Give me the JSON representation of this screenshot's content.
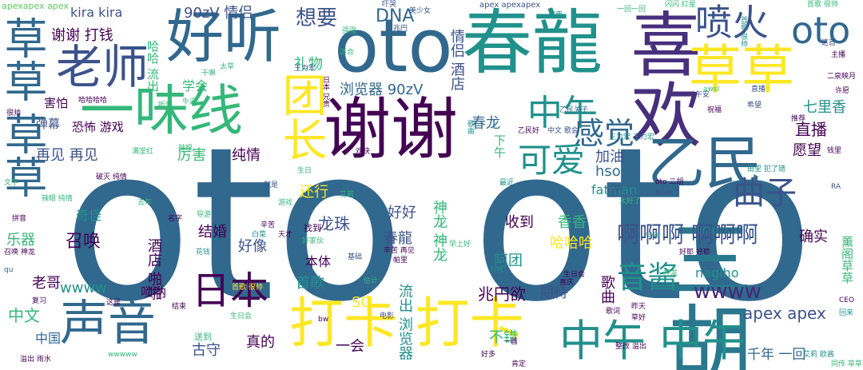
{
  "colors": {
    "background": "#ffffff",
    "purple": "#440154",
    "indigo": "#3b528b",
    "blue": "#31688e",
    "teal": "#21918c",
    "green": "#35b779",
    "lime": "#5ec962",
    "yellow": "#fde725",
    "yellowgreen": "#b5de2b"
  },
  "words": [
    {
      "text": "oto oto",
      "color": "#31688e"
    },
    {
      "text": "春龍",
      "color": "#21918c"
    },
    {
      "text": "oto",
      "color": "#31688e"
    },
    {
      "text": "谢谢",
      "color": "#440154"
    },
    {
      "text": "喜欢",
      "color": "#472f7d"
    },
    {
      "text": "草草",
      "color": "#fde725"
    },
    {
      "text": "三胡",
      "color": "#2a788e"
    },
    {
      "text": "乙民",
      "color": "#31688e"
    },
    {
      "text": "一味线",
      "color": "#35b779"
    },
    {
      "text": "好听",
      "color": "#31688e"
    },
    {
      "text": "老师",
      "color": "#3b528b"
    },
    {
      "text": "声音",
      "color": "#31688e"
    },
    {
      "text": "打卡 打卡",
      "color": "#fde725"
    },
    {
      "text": "中午 中午",
      "color": "#21918c"
    },
    {
      "text": "草草",
      "color": "#31688e"
    },
    {
      "text": "草草",
      "color": "#31688e"
    },
    {
      "text": "团长",
      "color": "#fde725"
    },
    {
      "text": "喷火",
      "color": "#3b528b"
    },
    {
      "text": "oto",
      "color": "#31688e"
    },
    {
      "text": "日本",
      "color": "#440154"
    },
    {
      "text": "中午",
      "color": "#21918c"
    },
    {
      "text": "感觉",
      "color": "#31688e"
    },
    {
      "text": "可爱",
      "color": "#21918c"
    },
    {
      "text": "曲子",
      "color": "#3b528b"
    },
    {
      "text": "音酱",
      "color": "#21918c"
    },
    {
      "text": "啊啊啊 啊啊啊",
      "color": "#3b528b"
    },
    {
      "text": "wwww",
      "color": "#482878"
    },
    {
      "text": "apex apex",
      "color": "#3b528b"
    },
    {
      "text": "千年 一回",
      "color": "#31688e"
    },
    {
      "text": "想要",
      "color": "#3b528b"
    },
    {
      "text": "DNA",
      "color": "#31688e"
    },
    {
      "text": "90zV 情侣",
      "color": "#3b528b"
    },
    {
      "text": "kira kira",
      "color": "#3b528b"
    },
    {
      "text": "谢谢 打钱",
      "color": "#440154"
    },
    {
      "text": "礼物",
      "color": "#35b779"
    },
    {
      "text": "浏览器 90zV",
      "color": "#31688e"
    },
    {
      "text": "情侣 酒店",
      "color": "#3b528b"
    },
    {
      "text": "春龙",
      "color": "#31688e"
    },
    {
      "text": "再见 再见",
      "color": "#3b528b"
    },
    {
      "text": "害怕",
      "color": "#440154"
    },
    {
      "text": "弹幕",
      "color": "#3b528b"
    },
    {
      "text": "恐怖 游戏",
      "color": "#440154"
    },
    {
      "text": "厉害",
      "color": "#35b779"
    },
    {
      "text": "纯情",
      "color": "#440154"
    },
    {
      "text": "加油",
      "color": "#3b528b"
    },
    {
      "text": "hso",
      "color": "#31688e"
    },
    {
      "text": "fatman",
      "color": "#21918c"
    },
    {
      "text": "直播",
      "color": "#440154"
    },
    {
      "text": "愿望",
      "color": "#440154"
    },
    {
      "text": "七里香",
      "color": "#21918c"
    },
    {
      "text": "好好",
      "color": "#3b528b"
    },
    {
      "text": "龙珠",
      "color": "#3b528b"
    },
    {
      "text": "还行",
      "color": "#fde725"
    },
    {
      "text": "召唤",
      "color": "#440154"
    },
    {
      "text": "奇怪",
      "color": "#21918c"
    },
    {
      "text": "结婚",
      "color": "#440154"
    },
    {
      "text": "好像",
      "color": "#3b528b"
    },
    {
      "text": "春龍",
      "color": "#3b528b"
    },
    {
      "text": "收到",
      "color": "#440154"
    },
    {
      "text": "香香",
      "color": "#35b779"
    },
    {
      "text": "哈哈哈",
      "color": "#fde725"
    },
    {
      "text": "阿团",
      "color": "#21918c"
    },
    {
      "text": "nagiho",
      "color": "#21918c"
    },
    {
      "text": "确实",
      "color": "#440154"
    },
    {
      "text": "乐器",
      "color": "#35b779"
    },
    {
      "text": "老哥",
      "color": "#440154"
    },
    {
      "text": "wwww",
      "color": "#21918c"
    },
    {
      "text": "首歌",
      "color": "#21918c"
    },
    {
      "text": "本体",
      "color": "#440154"
    },
    {
      "text": "兆円欲",
      "color": "#440154"
    },
    {
      "text": "期待",
      "color": "#3b528b"
    },
    {
      "text": "歌曲",
      "color": "#440154"
    },
    {
      "text": "SC",
      "color": "#fde725"
    },
    {
      "text": "中文",
      "color": "#35b779"
    },
    {
      "text": "中国",
      "color": "#31688e"
    },
    {
      "text": "古守",
      "color": "#3b528b"
    },
    {
      "text": "真的",
      "color": "#440154"
    },
    {
      "text": "一会",
      "color": "#440154"
    },
    {
      "text": "不错",
      "color": "#35b779"
    },
    {
      "text": "流出 浏览器",
      "color": "#21918c"
    },
    {
      "text": "神龙 神龙",
      "color": "#35b779"
    },
    {
      "text": "酒店 啪啪",
      "color": "#440154"
    },
    {
      "text": "唢呐",
      "color": "#440154"
    },
    {
      "text": "学会",
      "color": "#35b779"
    },
    {
      "text": "哈哈 流出",
      "color": "#35b779"
    },
    {
      "text": "下午",
      "color": "#35b779"
    },
    {
      "text": "薰阁草草",
      "color": "#35b779"
    },
    {
      "text": "apexapex apex",
      "color": "#5ec962"
    },
    {
      "text": "apex apexapex",
      "color": "#3b528b"
    },
    {
      "text": "王力宏",
      "color": "#3b528b"
    },
    {
      "text": "王力宏 王力宏",
      "color": "#21918c"
    },
    {
      "text": "美少女",
      "color": "#3b528b"
    },
    {
      "text": "哈哈哈哈",
      "color": "#440154"
    },
    {
      "text": "满堂红",
      "color": "#35b779"
    },
    {
      "text": "破灭 纯情",
      "color": "#440154"
    },
    {
      "text": "oto 二胡",
      "color": "#440154"
    },
    {
      "text": "乙民关子",
      "color": "#31688e"
    },
    {
      "text": "中文 歌会",
      "color": "#3b528b"
    },
    {
      "text": "田里 犯了错",
      "color": "#21918c"
    },
    {
      "text": "主播",
      "color": "#440154"
    },
    {
      "text": "二泉映月",
      "color": "#440154"
    },
    {
      "text": "CEO",
      "color": "#440154"
    },
    {
      "text": "回来",
      "color": "#21918c"
    },
    {
      "text": "艾莉 欧酱",
      "color": "#21918c"
    },
    {
      "text": "同传 草草",
      "color": "#35b779"
    },
    {
      "text": "好耶 好耶",
      "color": "#440154"
    },
    {
      "text": "召唤 神龙",
      "color": "#440154"
    },
    {
      "text": "溢出 雨水",
      "color": "#440154"
    },
    {
      "text": "wwwww",
      "color": "#35b779"
    },
    {
      "text": "拼音",
      "color": "#440154"
    },
    {
      "text": "awsl",
      "color": "#35b779"
    },
    {
      "text": "首歌 很帅",
      "color": "#21918c"
    },
    {
      "text": "一回一回",
      "color": "#35b779"
    },
    {
      "text": "闪闪 红星",
      "color": "#35b779"
    },
    {
      "text": "东西",
      "color": "#21918c"
    },
    {
      "text": "太好了",
      "color": "#35b779"
    },
    {
      "text": "BGM",
      "color": "#3b528b"
    },
    {
      "text": "歌词",
      "color": "#440154"
    },
    {
      "text": "草好",
      "color": "#440154"
    },
    {
      "text": "昨天",
      "color": "#440154"
    },
    {
      "text": "生日会",
      "color": "#440154"
    },
    {
      "text": "喜庆",
      "color": "#440154"
    },
    {
      "text": "为啥",
      "color": "#21918c"
    },
    {
      "text": "辛苦 再见",
      "color": "#440154"
    },
    {
      "text": "帕里",
      "color": "#440154"
    },
    {
      "text": "基础",
      "color": "#3b528b"
    },
    {
      "text": "估计",
      "color": "#35b779"
    },
    {
      "text": "电影",
      "color": "#3b528b"
    },
    {
      "text": "bw",
      "color": "#440154"
    },
    {
      "text": "送到",
      "color": "#35b779"
    },
    {
      "text": "这是",
      "color": "#440154"
    },
    {
      "text": "复习",
      "color": "#440154"
    },
    {
      "text": "qu",
      "color": "#31688e"
    },
    {
      "text": "好家伙",
      "color": "#35b779"
    },
    {
      "text": "花钱",
      "color": "#21918c"
    },
    {
      "text": "找到",
      "color": "#440154"
    },
    {
      "text": "辛苦",
      "color": "#440154"
    },
    {
      "text": "天才",
      "color": "#440154"
    },
    {
      "text": "白菜",
      "color": "#21918c"
    },
    {
      "text": "导游",
      "color": "#35b779"
    },
    {
      "text": "特别",
      "color": "#21918c"
    },
    {
      "text": "记得",
      "color": "#3b528b"
    },
    {
      "text": "早上好",
      "color": "#35b779"
    },
    {
      "text": "最近",
      "color": "#21918c"
    },
    {
      "text": "兆円",
      "color": "#3b528b"
    },
    {
      "text": "强强",
      "color": "#35b779"
    },
    {
      "text": "适合",
      "color": "#35b779"
    },
    {
      "text": "吓哭",
      "color": "#3b528b"
    },
    {
      "text": "日本 兄贵",
      "color": "#440154"
    },
    {
      "text": "歌曲",
      "color": "#21918c"
    },
    {
      "text": "乙民好",
      "color": "#440154"
    },
    {
      "text": "推荐",
      "color": "#440154"
    },
    {
      "text": "希望",
      "color": "#3b528b"
    },
    {
      "text": "祝福",
      "color": "#440154"
    },
    {
      "text": "许愿",
      "color": "#440154"
    },
    {
      "text": "这首",
      "color": "#3b528b"
    },
    {
      "text": "首歌 很帅",
      "color": "#35b779"
    },
    {
      "text": "文字",
      "color": "#35b779"
    },
    {
      "text": "辣眼 纯情",
      "color": "#35b779"
    },
    {
      "text": "很帅",
      "color": "#440154"
    },
    {
      "text": "去年",
      "color": "#35b779"
    },
    {
      "text": "听到",
      "color": "#35b779"
    },
    {
      "text": "牛逼",
      "color": "#35b779"
    },
    {
      "text": "太草",
      "color": "#35b779"
    },
    {
      "text": "干嘛",
      "color": "#35b779"
    },
    {
      "text": "辣眼",
      "color": "#35b779"
    },
    {
      "text": "直播",
      "color": "#3b528b"
    },
    {
      "text": "钱里",
      "color": "#440154"
    },
    {
      "text": "午安",
      "color": "#3b528b"
    },
    {
      "text": "RA",
      "color": "#3b528b"
    },
    {
      "text": "整改 溢出",
      "color": "#440154"
    },
    {
      "text": "好多",
      "color": "#440154"
    },
    {
      "text": "肯定",
      "color": "#440154"
    },
    {
      "text": "一首",
      "color": "#440154"
    },
    {
      "text": "欢快",
      "color": "#440154"
    },
    {
      "text": "结束",
      "color": "#440154"
    },
    {
      "text": "就是",
      "color": "#3b528b"
    },
    {
      "text": "生日",
      "color": "#35b779"
    },
    {
      "text": "游戏",
      "color": "#35b779"
    },
    {
      "text": "名字",
      "color": "#440154"
    },
    {
      "text": "生日会",
      "color": "#35b779"
    },
    {
      "text": "神龙",
      "color": "#35b779"
    },
    {
      "text": "首歌 很帅",
      "color": "#fde725"
    },
    {
      "text": "艾莉",
      "color": "#35b779"
    },
    {
      "text": "回来",
      "color": "#fde725"
    }
  ]
}
